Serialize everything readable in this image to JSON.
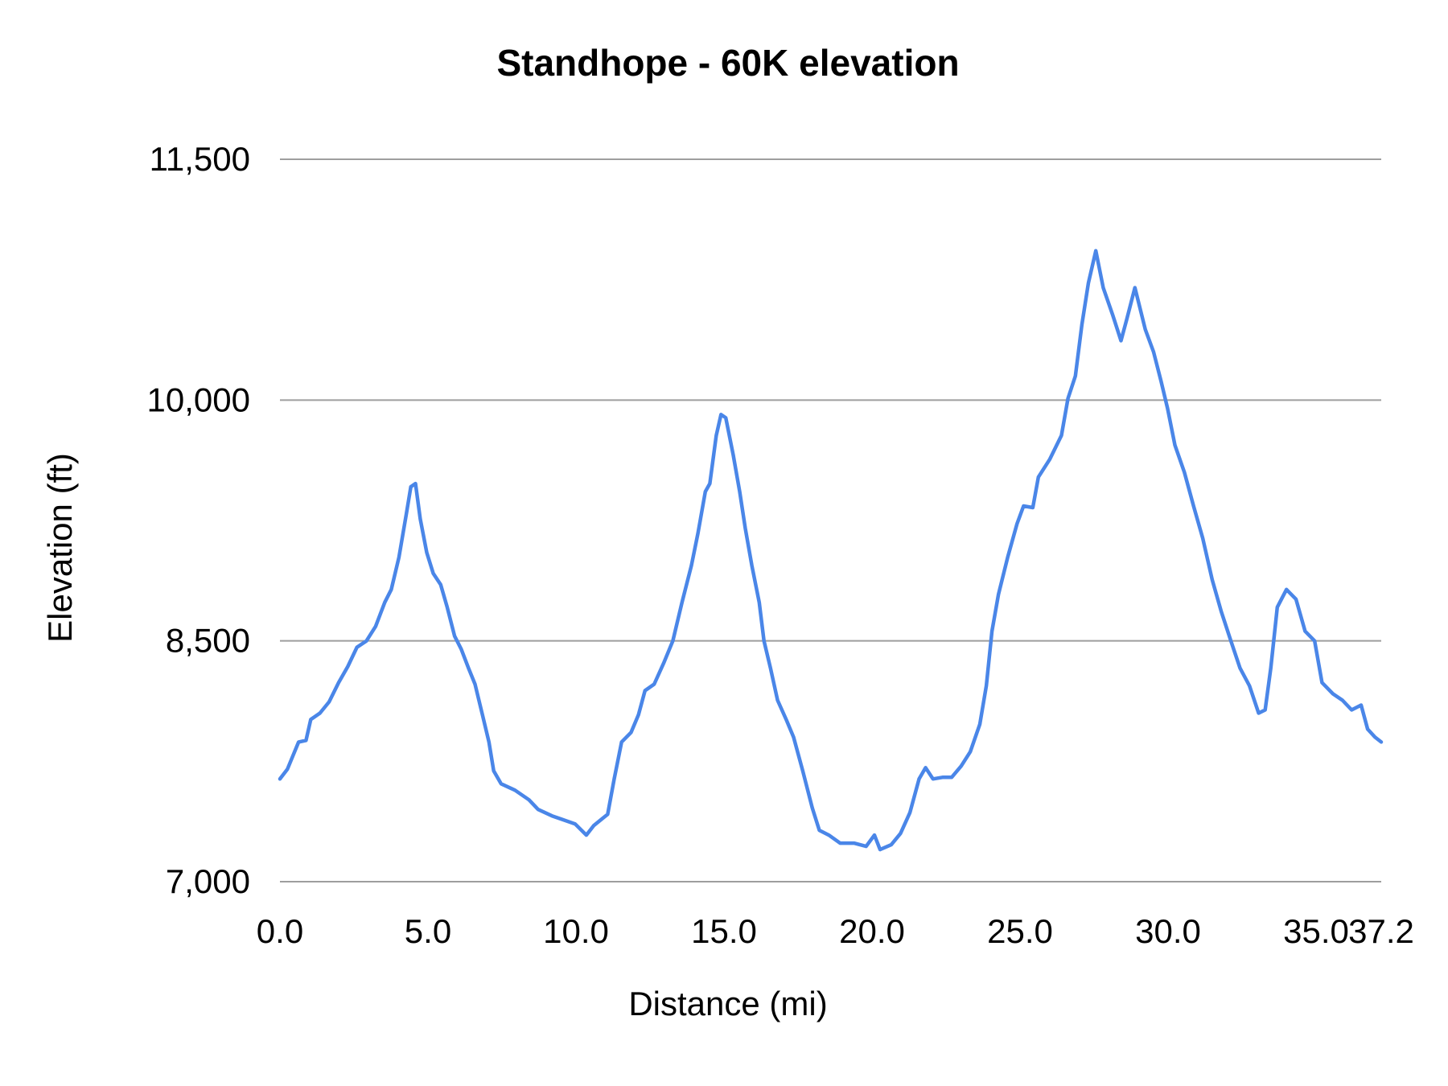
{
  "chart_data": {
    "type": "line",
    "title": "Standhope - 60K elevation",
    "xlabel": "Distance (mi)",
    "ylabel": "Elevation (ft)",
    "xlim": [
      0,
      37.2
    ],
    "ylim": [
      7000,
      11500
    ],
    "x_ticks": [
      "0.0",
      "5.0",
      "10.0",
      "15.0",
      "20.0",
      "25.0",
      "30.0",
      "35.0",
      "37.2"
    ],
    "x_tick_values": [
      0,
      5,
      10,
      15,
      20,
      25,
      30,
      35,
      37.2
    ],
    "y_ticks": [
      "7,000",
      "8,500",
      "10,000",
      "11,500"
    ],
    "y_tick_values": [
      7000,
      8500,
      10000,
      11500
    ],
    "grid": "horizontal",
    "legend": "none",
    "line_color": "#4a86e8",
    "series": [
      {
        "x": [
          0,
          0.25,
          0.63,
          0.88,
          1.04,
          1.35,
          1.66,
          1.98,
          2.29,
          2.6,
          2.92,
          3.23,
          3.54,
          3.76,
          4.02,
          4.27,
          4.42,
          4.58,
          4.74,
          4.96,
          5.18,
          5.43,
          5.65,
          5.9,
          6.12,
          6.37,
          6.59,
          6.84,
          7.06,
          7.22,
          7.47,
          7.94,
          8.41,
          8.72,
          9.19,
          9.66,
          9.97,
          10.35,
          10.6,
          11.07,
          11.29,
          11.54,
          11.86,
          12.11,
          12.33,
          12.64,
          12.96,
          13.27,
          13.58,
          13.9,
          14.12,
          14.37,
          14.52,
          14.74,
          14.9,
          15.06,
          15.31,
          15.53,
          15.72,
          15.94,
          16.19,
          16.35,
          16.57,
          16.81,
          17.1,
          17.35,
          17.66,
          17.98,
          18.22,
          18.54,
          18.92,
          19.39,
          19.8,
          20.08,
          20.27,
          20.65,
          20.96,
          21.28,
          21.59,
          21.81,
          22.06,
          22.38,
          22.69,
          23.01,
          23.32,
          23.64,
          23.86,
          24.05,
          24.27,
          24.58,
          24.9,
          25.12,
          25.43,
          25.62,
          26.0,
          26.4,
          26.62,
          26.87,
          27.09,
          27.31,
          27.56,
          27.81,
          28.13,
          28.41,
          28.6,
          28.88,
          29.23,
          29.51,
          29.76,
          29.98,
          30.23,
          30.55,
          30.86,
          31.17,
          31.49,
          31.8,
          32.12,
          32.43,
          32.75,
          33.06,
          33.28,
          33.47,
          33.69,
          34.0,
          34.32,
          34.63,
          34.95,
          35.2,
          35.57,
          35.89,
          36.2,
          36.52,
          36.74,
          36.99,
          37.2
        ],
        "y": [
          7640,
          7700,
          7870,
          7880,
          8010,
          8050,
          8120,
          8240,
          8340,
          8460,
          8500,
          8590,
          8740,
          8820,
          9020,
          9290,
          9460,
          9480,
          9260,
          9050,
          8920,
          8850,
          8710,
          8530,
          8450,
          8330,
          8230,
          8040,
          7870,
          7690,
          7610,
          7570,
          7510,
          7450,
          7410,
          7380,
          7360,
          7290,
          7350,
          7420,
          7640,
          7870,
          7930,
          8040,
          8190,
          8230,
          8360,
          8500,
          8740,
          8970,
          9170,
          9430,
          9480,
          9780,
          9910,
          9890,
          9660,
          9430,
          9200,
          8970,
          8740,
          8500,
          8330,
          8130,
          8010,
          7900,
          7690,
          7460,
          7320,
          7290,
          7240,
          7240,
          7220,
          7290,
          7200,
          7230,
          7300,
          7430,
          7640,
          7710,
          7640,
          7650,
          7650,
          7720,
          7810,
          7980,
          8220,
          8560,
          8790,
          9020,
          9230,
          9340,
          9330,
          9520,
          9630,
          9780,
          10010,
          10150,
          10470,
          10730,
          10930,
          10700,
          10530,
          10370,
          10500,
          10700,
          10440,
          10300,
          10120,
          9950,
          9720,
          9550,
          9340,
          9140,
          8880,
          8680,
          8500,
          8330,
          8220,
          8050,
          8070,
          8330,
          8710,
          8820,
          8760,
          8560,
          8500,
          8240,
          8170,
          8130,
          8070,
          8100,
          7950,
          7900,
          7870
        ]
      }
    ]
  }
}
